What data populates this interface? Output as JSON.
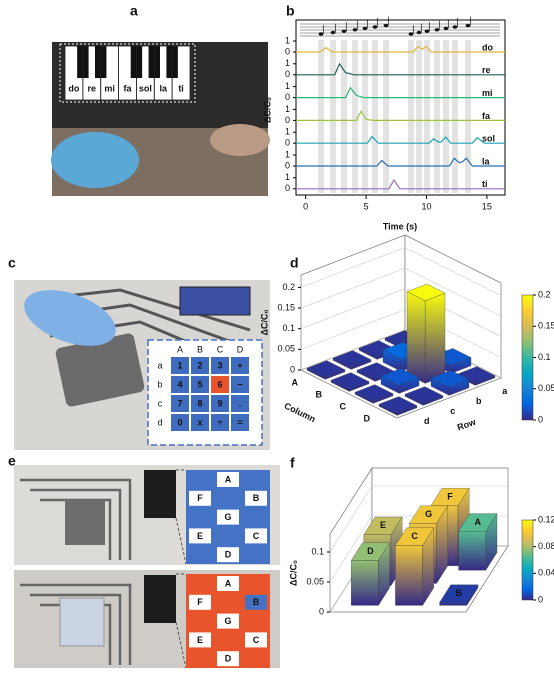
{
  "panel_labels": [
    "a",
    "b",
    "c",
    "d",
    "e",
    "f"
  ],
  "piano": {
    "keys": [
      "do",
      "re",
      "mi",
      "fa",
      "sol",
      "la",
      "ti"
    ]
  },
  "keypad": {
    "columns": [
      "A",
      "B",
      "C",
      "D"
    ],
    "rows": [
      "a",
      "b",
      "c",
      "d"
    ],
    "keys": [
      [
        "1",
        "2",
        "3",
        "+"
      ],
      [
        "4",
        "5",
        "6",
        "−"
      ],
      [
        "7",
        "8",
        "9",
        "."
      ],
      [
        "0",
        "x",
        "÷",
        "="
      ]
    ]
  },
  "seven_segment": {
    "segments": [
      "A",
      "B",
      "C",
      "D",
      "E",
      "F",
      "G"
    ]
  },
  "chart_data": [
    {
      "type": "line",
      "xlabel": "Time (s)",
      "ylabel": "ΔC/C₀",
      "xlim": [
        -0.8,
        16.5
      ],
      "xticks": [
        0,
        5,
        10,
        15
      ],
      "ylim": [
        0,
        1
      ],
      "yticks": [
        0,
        1
      ],
      "series": [
        {
          "name": "do",
          "color": "#e6b43c",
          "x": [
            -0.8,
            1.2,
            1.7,
            2.2,
            8.9,
            9.3,
            9.65,
            10,
            10.4,
            16.5
          ],
          "values": [
            0,
            0,
            0.4,
            0,
            0,
            0.5,
            0.25,
            0.5,
            0,
            0
          ]
        },
        {
          "name": "re",
          "color": "#1f5f5b",
          "x": [
            -0.8,
            2.4,
            2.8,
            3.3,
            4,
            16.5
          ],
          "values": [
            0,
            0,
            1,
            0.2,
            0,
            0
          ]
        },
        {
          "name": "mi",
          "color": "#2bb673",
          "x": [
            -0.8,
            3.3,
            3.7,
            4.2,
            4.8,
            16.5
          ],
          "values": [
            0,
            0,
            0.9,
            0.2,
            0,
            0
          ]
        },
        {
          "name": "fa",
          "color": "#9ac43c",
          "x": [
            -0.8,
            4.2,
            4.6,
            5,
            5.6,
            16.5
          ],
          "values": [
            0,
            0,
            0.85,
            0.1,
            0,
            0
          ]
        },
        {
          "name": "sol",
          "color": "#1ba3b8",
          "x": [
            -0.8,
            5.1,
            5.5,
            6,
            10.2,
            10.6,
            11,
            11.2,
            11.6,
            12,
            13.8,
            14.2,
            14.8,
            16.5
          ],
          "values": [
            0,
            0,
            0.6,
            0,
            0,
            0.4,
            0.1,
            0.1,
            0.55,
            0,
            0,
            0.5,
            0,
            0
          ]
        },
        {
          "name": "la",
          "color": "#2e6fb0",
          "x": [
            -0.8,
            5.9,
            6.3,
            6.8,
            11.9,
            12.3,
            12.7,
            13,
            13.3,
            13.8,
            16.5
          ],
          "values": [
            0,
            0,
            0.5,
            0,
            0,
            0.7,
            0.3,
            0.4,
            0.7,
            0,
            0
          ]
        },
        {
          "name": "ti",
          "color": "#9a6cc0",
          "x": [
            -0.8,
            6.9,
            7.3,
            7.8,
            12,
            16.5
          ],
          "values": [
            0,
            0,
            0.8,
            0,
            0,
            0
          ]
        }
      ]
    },
    {
      "type": "bar3d",
      "zlabel": "ΔC/C₀",
      "xlabel": "Column",
      "ylabel": "Row",
      "columns": [
        "A",
        "B",
        "C",
        "D"
      ],
      "rows": [
        "a",
        "b",
        "c",
        "d"
      ],
      "values": [
        [
          0.005,
          0.005,
          0.02,
          0.005
        ],
        [
          0.005,
          0.03,
          0.2,
          0.02
        ],
        [
          0.005,
          0.005,
          0.02,
          0.005
        ],
        [
          0.005,
          0.005,
          0.005,
          0.005
        ]
      ],
      "zlim": [
        0,
        0.23
      ],
      "zticks": [
        0,
        0.05,
        0.1,
        0.15,
        0.2
      ],
      "colorbar_lim": [
        0,
        0.2
      ],
      "colorbar_ticks": [
        0,
        0.05,
        0.1,
        0.15,
        0.2
      ]
    },
    {
      "type": "bar3d",
      "zlabel": "ΔC/C₀",
      "categories": [
        "A",
        "B",
        "C",
        "D",
        "E",
        "F",
        "G"
      ],
      "values": [
        0.065,
        0.005,
        0.1,
        0.075,
        0.085,
        0.1,
        0.1
      ],
      "zlim": [
        0,
        0.13
      ],
      "zticks": [
        0,
        0.05,
        0.1
      ],
      "colorbar_lim": [
        0,
        0.12
      ],
      "colorbar_ticks": [
        0,
        0.04,
        0.08,
        0.12
      ]
    }
  ]
}
